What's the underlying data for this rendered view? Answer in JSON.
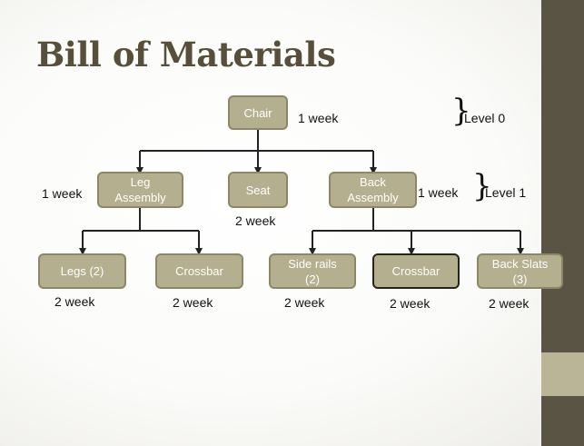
{
  "title": "Bill of Materials",
  "nodes": {
    "chair": "Chair",
    "leg_assembly": "Leg\nAssembly",
    "seat": "Seat",
    "back_assembly": "Back\nAssembly",
    "legs": "Legs (2)",
    "crossbar_left": "Crossbar",
    "side_rails": "Side rails\n(2)",
    "crossbar_right": "Crossbar",
    "back_slats": "Back Slats\n(3)"
  },
  "lead_times": {
    "chair": "1 week",
    "leg_assembly": "1 week",
    "seat": "2 week",
    "back_assembly": "1 week",
    "legs": "2 week",
    "crossbar_left": "2 week",
    "side_rails": "2 week",
    "crossbar_right": "2 week",
    "back_slats": "2 week"
  },
  "levels": {
    "level0": "Level 0",
    "level1": "Level 1"
  },
  "colors": {
    "box_fill": "#b4af8e",
    "box_border": "#8c8767",
    "title": "#574f3a",
    "sidebar": "#5a5444"
  }
}
